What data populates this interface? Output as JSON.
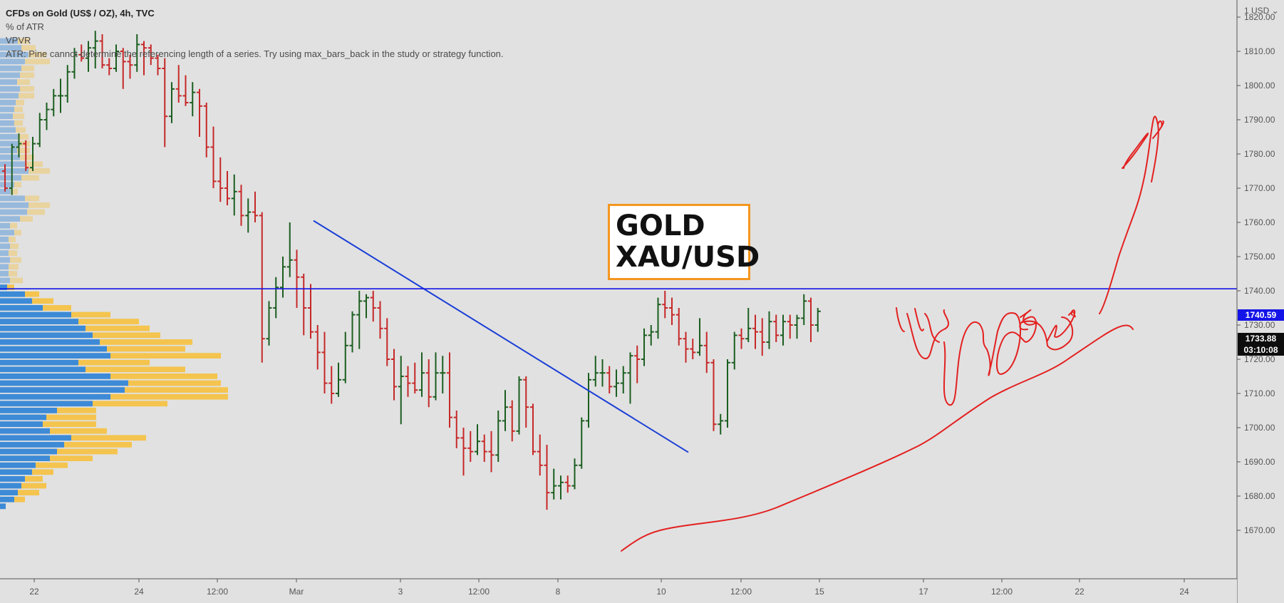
{
  "header": {
    "title": "CFDs on Gold (US$ / OZ), 4h, TVC",
    "indicators": [
      "% of ATR",
      "VPVR",
      "ATR: Pine cannot determine the referencing length of a series. Try using max_bars_back in the study or strategy function."
    ]
  },
  "annotation_box": {
    "line1": "GOLD",
    "line2": "XAU/USD"
  },
  "price_axis": {
    "currency_label": "1 USD ⌄"
  },
  "price_tags": {
    "horizontal_line_price": "1740.59",
    "last_price": "1733.88",
    "countdown": "03:10:08"
  },
  "colors": {
    "background": "#e1e1e1",
    "up": "#1b5e20",
    "down": "#c62828",
    "trendline": "#1a3fd6",
    "hline": "#1414e8",
    "drawing": "#e32020",
    "vpvr_up": "#3d8ad6",
    "vpvr_down": "#f4c44f",
    "box_border": "#f5961e"
  },
  "chart_data": {
    "type": "ohlc",
    "symbol": "CFDs on Gold (US$ / OZ), 4h, TVC",
    "x_ticks": [
      "22",
      "24",
      "12:00",
      "Mar",
      "3",
      "12:00",
      "8",
      "10",
      "12:00",
      "15",
      "17",
      "12:00",
      "22",
      "24"
    ],
    "y_ticks": [
      1820,
      1810,
      1800,
      1790,
      1780,
      1770,
      1760,
      1750,
      1740,
      1730,
      1720,
      1710,
      1700,
      1690,
      1680,
      1670
    ],
    "y_tick_labels": [
      "1820.00",
      "1810.00",
      "1800.00",
      "1790.00",
      "1780.00",
      "1770.00",
      "1760.00",
      "1750.00",
      "1740.00",
      "1730.00",
      "1720.00",
      "1710.00",
      "1700.00",
      "1690.00",
      "1680.00",
      "1670.00"
    ],
    "ylim": [
      1664.5,
      1824
    ],
    "bars": [
      {
        "o": 1775,
        "h": 1777,
        "l": 1769,
        "c": 1770
      },
      {
        "o": 1770,
        "h": 1783,
        "l": 1768,
        "c": 1782
      },
      {
        "o": 1782,
        "h": 1786,
        "l": 1779,
        "c": 1783
      },
      {
        "o": 1783,
        "h": 1784,
        "l": 1775,
        "c": 1776
      },
      {
        "o": 1776,
        "h": 1785,
        "l": 1775,
        "c": 1783
      },
      {
        "o": 1783,
        "h": 1792,
        "l": 1782,
        "c": 1790
      },
      {
        "o": 1790,
        "h": 1795,
        "l": 1787,
        "c": 1793
      },
      {
        "o": 1793,
        "h": 1799,
        "l": 1791,
        "c": 1797
      },
      {
        "o": 1797,
        "h": 1802,
        "l": 1792,
        "c": 1797
      },
      {
        "o": 1797,
        "h": 1806,
        "l": 1795,
        "c": 1804
      },
      {
        "o": 1804,
        "h": 1811,
        "l": 1802,
        "c": 1809
      },
      {
        "o": 1809,
        "h": 1812,
        "l": 1807,
        "c": 1808
      },
      {
        "o": 1808,
        "h": 1813,
        "l": 1804,
        "c": 1811
      },
      {
        "o": 1811,
        "h": 1816,
        "l": 1805,
        "c": 1813
      },
      {
        "o": 1813,
        "h": 1815,
        "l": 1805,
        "c": 1806
      },
      {
        "o": 1806,
        "h": 1808,
        "l": 1803,
        "c": 1805
      },
      {
        "o": 1805,
        "h": 1812,
        "l": 1804,
        "c": 1810
      },
      {
        "o": 1810,
        "h": 1811,
        "l": 1799,
        "c": 1807
      },
      {
        "o": 1807,
        "h": 1809,
        "l": 1802,
        "c": 1806
      },
      {
        "o": 1806,
        "h": 1815,
        "l": 1804,
        "c": 1812
      },
      {
        "o": 1812,
        "h": 1813,
        "l": 1803,
        "c": 1811
      },
      {
        "o": 1811,
        "h": 1812,
        "l": 1806,
        "c": 1808
      },
      {
        "o": 1808,
        "h": 1809,
        "l": 1803,
        "c": 1805
      },
      {
        "o": 1805,
        "h": 1808,
        "l": 1782,
        "c": 1791
      },
      {
        "o": 1791,
        "h": 1801,
        "l": 1789,
        "c": 1799
      },
      {
        "o": 1799,
        "h": 1806,
        "l": 1795,
        "c": 1797
      },
      {
        "o": 1797,
        "h": 1803,
        "l": 1794,
        "c": 1795
      },
      {
        "o": 1795,
        "h": 1801,
        "l": 1791,
        "c": 1798
      },
      {
        "o": 1798,
        "h": 1799,
        "l": 1785,
        "c": 1794
      },
      {
        "o": 1794,
        "h": 1795,
        "l": 1779,
        "c": 1782
      },
      {
        "o": 1782,
        "h": 1788,
        "l": 1770,
        "c": 1772
      },
      {
        "o": 1772,
        "h": 1779,
        "l": 1766,
        "c": 1770
      },
      {
        "o": 1770,
        "h": 1775,
        "l": 1765,
        "c": 1767
      },
      {
        "o": 1767,
        "h": 1774,
        "l": 1762,
        "c": 1769
      },
      {
        "o": 1769,
        "h": 1771,
        "l": 1759,
        "c": 1762
      },
      {
        "o": 1762,
        "h": 1767,
        "l": 1757,
        "c": 1763
      },
      {
        "o": 1763,
        "h": 1769,
        "l": 1760,
        "c": 1762
      },
      {
        "o": 1762,
        "h": 1763,
        "l": 1719,
        "c": 1726
      },
      {
        "o": 1726,
        "h": 1737,
        "l": 1724,
        "c": 1735
      },
      {
        "o": 1735,
        "h": 1744,
        "l": 1732,
        "c": 1741
      },
      {
        "o": 1741,
        "h": 1750,
        "l": 1738,
        "c": 1747
      },
      {
        "o": 1747,
        "h": 1760,
        "l": 1744,
        "c": 1749
      },
      {
        "o": 1749,
        "h": 1752,
        "l": 1735,
        "c": 1744
      },
      {
        "o": 1744,
        "h": 1745,
        "l": 1727,
        "c": 1735
      },
      {
        "o": 1735,
        "h": 1742,
        "l": 1726,
        "c": 1728
      },
      {
        "o": 1728,
        "h": 1730,
        "l": 1717,
        "c": 1722
      },
      {
        "o": 1722,
        "h": 1728,
        "l": 1710,
        "c": 1713
      },
      {
        "o": 1713,
        "h": 1718,
        "l": 1707,
        "c": 1710
      },
      {
        "o": 1710,
        "h": 1719,
        "l": 1709,
        "c": 1714
      },
      {
        "o": 1714,
        "h": 1728,
        "l": 1713,
        "c": 1724
      },
      {
        "o": 1724,
        "h": 1734,
        "l": 1722,
        "c": 1733
      },
      {
        "o": 1733,
        "h": 1740,
        "l": 1723,
        "c": 1737
      },
      {
        "o": 1737,
        "h": 1739,
        "l": 1732,
        "c": 1738
      },
      {
        "o": 1738,
        "h": 1740,
        "l": 1731,
        "c": 1735
      },
      {
        "o": 1735,
        "h": 1737,
        "l": 1726,
        "c": 1729
      },
      {
        "o": 1729,
        "h": 1732,
        "l": 1718,
        "c": 1720
      },
      {
        "o": 1720,
        "h": 1723,
        "l": 1708,
        "c": 1712
      },
      {
        "o": 1712,
        "h": 1721,
        "l": 1701,
        "c": 1715
      },
      {
        "o": 1715,
        "h": 1718,
        "l": 1709,
        "c": 1713
      },
      {
        "o": 1713,
        "h": 1719,
        "l": 1710,
        "c": 1711
      },
      {
        "o": 1711,
        "h": 1722,
        "l": 1709,
        "c": 1716
      },
      {
        "o": 1716,
        "h": 1720,
        "l": 1706,
        "c": 1709
      },
      {
        "o": 1709,
        "h": 1722,
        "l": 1708,
        "c": 1716
      },
      {
        "o": 1716,
        "h": 1721,
        "l": 1710,
        "c": 1716
      },
      {
        "o": 1716,
        "h": 1722,
        "l": 1700,
        "c": 1703
      },
      {
        "o": 1703,
        "h": 1705,
        "l": 1694,
        "c": 1697
      },
      {
        "o": 1697,
        "h": 1700,
        "l": 1686,
        "c": 1694
      },
      {
        "o": 1694,
        "h": 1699,
        "l": 1690,
        "c": 1693
      },
      {
        "o": 1693,
        "h": 1701,
        "l": 1692,
        "c": 1696
      },
      {
        "o": 1696,
        "h": 1698,
        "l": 1690,
        "c": 1693
      },
      {
        "o": 1693,
        "h": 1699,
        "l": 1687,
        "c": 1692
      },
      {
        "o": 1692,
        "h": 1705,
        "l": 1690,
        "c": 1702
      },
      {
        "o": 1702,
        "h": 1711,
        "l": 1699,
        "c": 1706
      },
      {
        "o": 1706,
        "h": 1708,
        "l": 1696,
        "c": 1699
      },
      {
        "o": 1699,
        "h": 1715,
        "l": 1698,
        "c": 1714
      },
      {
        "o": 1714,
        "h": 1715,
        "l": 1700,
        "c": 1706
      },
      {
        "o": 1706,
        "h": 1707,
        "l": 1692,
        "c": 1693
      },
      {
        "o": 1693,
        "h": 1698,
        "l": 1686,
        "c": 1689
      },
      {
        "o": 1689,
        "h": 1695,
        "l": 1676,
        "c": 1681
      },
      {
        "o": 1681,
        "h": 1688,
        "l": 1679,
        "c": 1683
      },
      {
        "o": 1683,
        "h": 1686,
        "l": 1679,
        "c": 1684
      },
      {
        "o": 1684,
        "h": 1686,
        "l": 1681,
        "c": 1683
      },
      {
        "o": 1683,
        "h": 1691,
        "l": 1682,
        "c": 1689
      },
      {
        "o": 1689,
        "h": 1703,
        "l": 1688,
        "c": 1702
      },
      {
        "o": 1702,
        "h": 1716,
        "l": 1700,
        "c": 1714
      },
      {
        "o": 1714,
        "h": 1721,
        "l": 1712,
        "c": 1716
      },
      {
        "o": 1716,
        "h": 1720,
        "l": 1712,
        "c": 1716
      },
      {
        "o": 1716,
        "h": 1718,
        "l": 1710,
        "c": 1712
      },
      {
        "o": 1712,
        "h": 1717,
        "l": 1709,
        "c": 1713
      },
      {
        "o": 1713,
        "h": 1718,
        "l": 1710,
        "c": 1716
      },
      {
        "o": 1716,
        "h": 1722,
        "l": 1707,
        "c": 1721
      },
      {
        "o": 1721,
        "h": 1724,
        "l": 1713,
        "c": 1720
      },
      {
        "o": 1720,
        "h": 1729,
        "l": 1718,
        "c": 1727
      },
      {
        "o": 1727,
        "h": 1730,
        "l": 1724,
        "c": 1728
      },
      {
        "o": 1728,
        "h": 1738,
        "l": 1726,
        "c": 1736
      },
      {
        "o": 1736,
        "h": 1740,
        "l": 1732,
        "c": 1735
      },
      {
        "o": 1735,
        "h": 1738,
        "l": 1730,
        "c": 1733
      },
      {
        "o": 1733,
        "h": 1735,
        "l": 1724,
        "c": 1726
      },
      {
        "o": 1726,
        "h": 1728,
        "l": 1719,
        "c": 1723
      },
      {
        "o": 1723,
        "h": 1726,
        "l": 1720,
        "c": 1722
      },
      {
        "o": 1722,
        "h": 1732,
        "l": 1721,
        "c": 1724
      },
      {
        "o": 1724,
        "h": 1728,
        "l": 1716,
        "c": 1719
      },
      {
        "o": 1719,
        "h": 1720,
        "l": 1699,
        "c": 1701
      },
      {
        "o": 1701,
        "h": 1704,
        "l": 1698,
        "c": 1702
      },
      {
        "o": 1702,
        "h": 1720,
        "l": 1700,
        "c": 1719
      },
      {
        "o": 1719,
        "h": 1728,
        "l": 1717,
        "c": 1727
      },
      {
        "o": 1727,
        "h": 1729,
        "l": 1723,
        "c": 1726
      },
      {
        "o": 1726,
        "h": 1735,
        "l": 1725,
        "c": 1729
      },
      {
        "o": 1729,
        "h": 1733,
        "l": 1723,
        "c": 1728
      },
      {
        "o": 1728,
        "h": 1732,
        "l": 1721,
        "c": 1725
      },
      {
        "o": 1725,
        "h": 1734,
        "l": 1723,
        "c": 1731
      },
      {
        "o": 1731,
        "h": 1733,
        "l": 1725,
        "c": 1727
      },
      {
        "o": 1727,
        "h": 1733,
        "l": 1724,
        "c": 1731
      },
      {
        "o": 1731,
        "h": 1733,
        "l": 1726,
        "c": 1730
      },
      {
        "o": 1730,
        "h": 1733,
        "l": 1726,
        "c": 1732
      },
      {
        "o": 1732,
        "h": 1739,
        "l": 1730,
        "c": 1737
      },
      {
        "o": 1737,
        "h": 1738,
        "l": 1725,
        "c": 1730
      },
      {
        "o": 1730,
        "h": 1735,
        "l": 1728,
        "c": 1734
      }
    ],
    "trendline": {
      "start_price": 1760.5,
      "end_price": 1692.8
    },
    "horizontal_line": 1740.59,
    "last_price": 1733.88,
    "vpvr": [
      {
        "p": 1813,
        "u": 25,
        "d": 16
      },
      {
        "p": 1811,
        "u": 30,
        "d": 20
      },
      {
        "p": 1809,
        "u": 40,
        "d": 25
      },
      {
        "p": 1807,
        "u": 35,
        "d": 35
      },
      {
        "p": 1805,
        "u": 30,
        "d": 18
      },
      {
        "p": 1803,
        "u": 28,
        "d": 20
      },
      {
        "p": 1801,
        "u": 24,
        "d": 18
      },
      {
        "p": 1799,
        "u": 28,
        "d": 20
      },
      {
        "p": 1797,
        "u": 26,
        "d": 22
      },
      {
        "p": 1795,
        "u": 22,
        "d": 12
      },
      {
        "p": 1793,
        "u": 20,
        "d": 12
      },
      {
        "p": 1791,
        "u": 18,
        "d": 16
      },
      {
        "p": 1789,
        "u": 20,
        "d": 12
      },
      {
        "p": 1787,
        "u": 22,
        "d": 14
      },
      {
        "p": 1785,
        "u": 25,
        "d": 15
      },
      {
        "p": 1783,
        "u": 27,
        "d": 15
      },
      {
        "p": 1781,
        "u": 24,
        "d": 18
      },
      {
        "p": 1779,
        "u": 28,
        "d": 20
      },
      {
        "p": 1777,
        "u": 35,
        "d": 25
      },
      {
        "p": 1775,
        "u": 40,
        "d": 30
      },
      {
        "p": 1773,
        "u": 30,
        "d": 25
      },
      {
        "p": 1771,
        "u": 20,
        "d": 10
      },
      {
        "p": 1769,
        "u": 15,
        "d": 10
      },
      {
        "p": 1767,
        "u": 35,
        "d": 20
      },
      {
        "p": 1765,
        "u": 40,
        "d": 30
      },
      {
        "p": 1763,
        "u": 38,
        "d": 25
      },
      {
        "p": 1761,
        "u": 28,
        "d": 18
      },
      {
        "p": 1759,
        "u": 14,
        "d": 10
      },
      {
        "p": 1757,
        "u": 20,
        "d": 10
      },
      {
        "p": 1755,
        "u": 12,
        "d": 10
      },
      {
        "p": 1753,
        "u": 14,
        "d": 12
      },
      {
        "p": 1751,
        "u": 12,
        "d": 12
      },
      {
        "p": 1749,
        "u": 14,
        "d": 16
      },
      {
        "p": 1747,
        "u": 12,
        "d": 14
      },
      {
        "p": 1745,
        "u": 12,
        "d": 12
      },
      {
        "p": 1743,
        "u": 14,
        "d": 18
      },
      {
        "p": 1741,
        "u": 10,
        "d": 10
      },
      {
        "p": 1739,
        "u": 35,
        "d": 20
      },
      {
        "p": 1737,
        "u": 45,
        "d": 30
      },
      {
        "p": 1735,
        "u": 60,
        "d": 40
      },
      {
        "p": 1733,
        "u": 100,
        "d": 55
      },
      {
        "p": 1731,
        "u": 110,
        "d": 85
      },
      {
        "p": 1729,
        "u": 120,
        "d": 90
      },
      {
        "p": 1727,
        "u": 130,
        "d": 95
      },
      {
        "p": 1725,
        "u": 140,
        "d": 130
      },
      {
        "p": 1723,
        "u": 150,
        "d": 110
      },
      {
        "p": 1721,
        "u": 155,
        "d": 155
      },
      {
        "p": 1719,
        "u": 110,
        "d": 100
      },
      {
        "p": 1717,
        "u": 120,
        "d": 140
      },
      {
        "p": 1715,
        "u": 155,
        "d": 150
      },
      {
        "p": 1713,
        "u": 180,
        "d": 130
      },
      {
        "p": 1711,
        "u": 175,
        "d": 145
      },
      {
        "p": 1709,
        "u": 155,
        "d": 165
      },
      {
        "p": 1707,
        "u": 130,
        "d": 105
      },
      {
        "p": 1705,
        "u": 80,
        "d": 55
      },
      {
        "p": 1703,
        "u": 65,
        "d": 70
      },
      {
        "p": 1701,
        "u": 60,
        "d": 75
      },
      {
        "p": 1699,
        "u": 70,
        "d": 80
      },
      {
        "p": 1697,
        "u": 100,
        "d": 105
      },
      {
        "p": 1695,
        "u": 90,
        "d": 95
      },
      {
        "p": 1693,
        "u": 80,
        "d": 85
      },
      {
        "p": 1691,
        "u": 70,
        "d": 60
      },
      {
        "p": 1689,
        "u": 50,
        "d": 45
      },
      {
        "p": 1687,
        "u": 45,
        "d": 30
      },
      {
        "p": 1685,
        "u": 35,
        "d": 25
      },
      {
        "p": 1683,
        "u": 30,
        "d": 35
      },
      {
        "p": 1681,
        "u": 25,
        "d": 30
      },
      {
        "p": 1679,
        "u": 20,
        "d": 15
      },
      {
        "p": 1677,
        "u": 8,
        "d": 0
      }
    ]
  }
}
